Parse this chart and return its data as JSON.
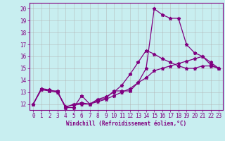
{
  "xlabel": "Windchill (Refroidissement éolien,°C)",
  "background_color": "#c8eef0",
  "line_color": "#800080",
  "grid_color": "#b0b0b0",
  "xlim": [
    -0.5,
    23.5
  ],
  "ylim": [
    11.5,
    20.5
  ],
  "xticks": [
    0,
    1,
    2,
    3,
    4,
    5,
    6,
    7,
    8,
    9,
    10,
    11,
    12,
    13,
    14,
    15,
    16,
    17,
    18,
    19,
    20,
    21,
    22,
    23
  ],
  "yticks": [
    12,
    13,
    14,
    15,
    16,
    17,
    18,
    19,
    20
  ],
  "line1_x": [
    0,
    1,
    2,
    3,
    4,
    5,
    6,
    7,
    8,
    9,
    10,
    11,
    12,
    13,
    14,
    15,
    16,
    17,
    18,
    19,
    20,
    21,
    22,
    23
  ],
  "line1_y": [
    12.0,
    13.3,
    13.1,
    13.1,
    11.7,
    11.7,
    12.7,
    12.0,
    12.3,
    12.5,
    13.1,
    13.1,
    13.1,
    13.8,
    15.0,
    20.0,
    19.5,
    19.2,
    19.2,
    17.0,
    16.3,
    16.0,
    15.3,
    15.0
  ],
  "line2_x": [
    0,
    1,
    2,
    3,
    4,
    5,
    6,
    7,
    8,
    9,
    10,
    11,
    12,
    13,
    14,
    15,
    16,
    17,
    18,
    19,
    20,
    21,
    22,
    23
  ],
  "line2_y": [
    12.0,
    13.3,
    13.2,
    13.0,
    11.7,
    12.0,
    12.1,
    12.0,
    12.4,
    12.6,
    13.0,
    13.6,
    14.5,
    15.5,
    16.5,
    16.2,
    15.8,
    15.5,
    15.2,
    15.0,
    15.0,
    15.2,
    15.2,
    15.0
  ],
  "line3_x": [
    0,
    1,
    2,
    3,
    4,
    5,
    6,
    7,
    8,
    9,
    10,
    11,
    12,
    13,
    14,
    15,
    16,
    17,
    18,
    19,
    20,
    21,
    22,
    23
  ],
  "line3_y": [
    12.0,
    13.2,
    13.1,
    13.0,
    11.8,
    11.9,
    12.0,
    12.0,
    12.2,
    12.4,
    12.7,
    13.0,
    13.3,
    13.8,
    14.2,
    14.8,
    15.0,
    15.2,
    15.4,
    15.6,
    15.8,
    16.0,
    15.5,
    15.0
  ]
}
